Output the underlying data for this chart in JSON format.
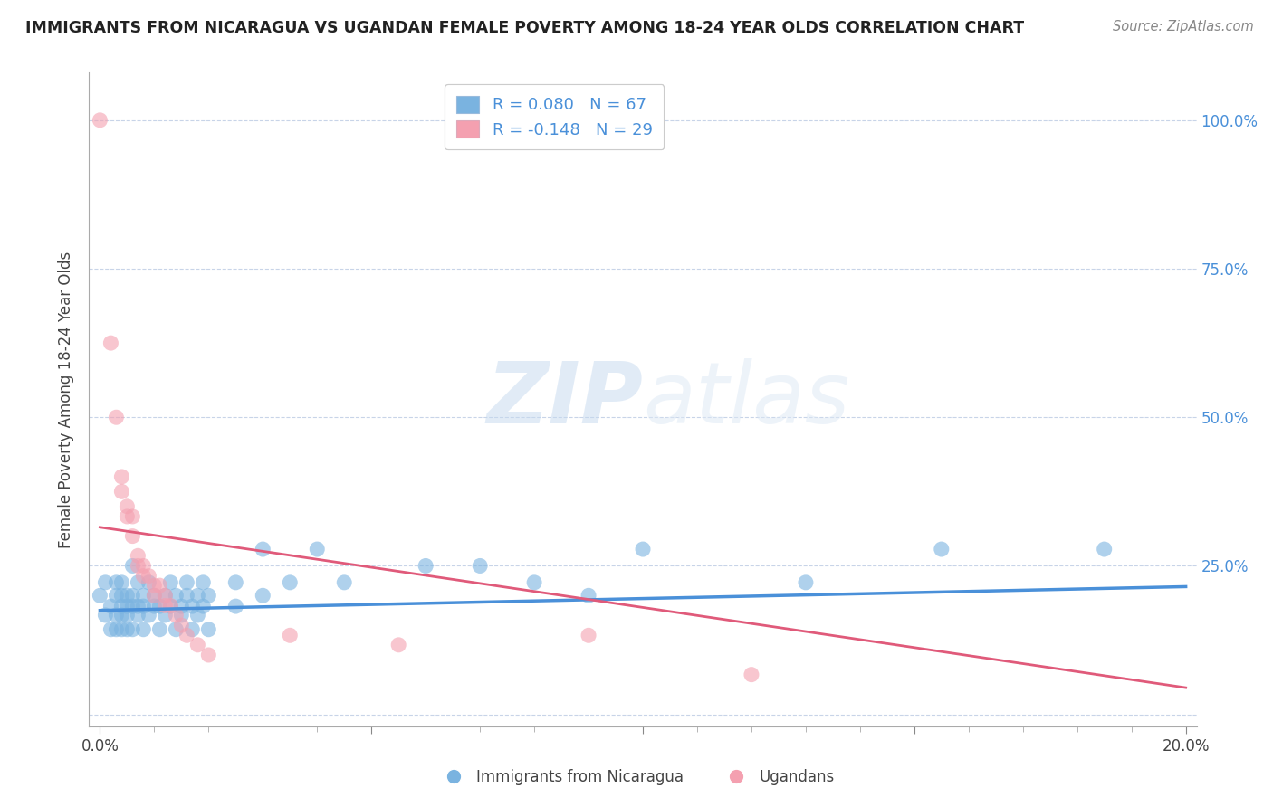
{
  "title": "IMMIGRANTS FROM NICARAGUA VS UGANDAN FEMALE POVERTY AMONG 18-24 YEAR OLDS CORRELATION CHART",
  "source": "Source: ZipAtlas.com",
  "ylabel": "Female Poverty Among 18-24 Year Olds",
  "right_yticks": [
    "100.0%",
    "75.0%",
    "50.0%",
    "25.0%"
  ],
  "right_ytick_vals": [
    1.0,
    0.75,
    0.5,
    0.25
  ],
  "r_blue": 0.08,
  "n_blue": 67,
  "r_pink": -0.148,
  "n_pink": 29,
  "legend_labels": [
    "Immigrants from Nicaragua",
    "Ugandans"
  ],
  "blue_color": "#7ab3e0",
  "pink_color": "#f4a0b0",
  "line_blue": "#4a90d9",
  "line_pink": "#e05a7a",
  "watermark_zip": "ZIP",
  "watermark_atlas": "atlas",
  "background_color": "#ffffff",
  "grid_color": "#c8d4e8",
  "title_color": "#222222",
  "text_color": "#444444",
  "blue_scatter": [
    [
      0.0,
      0.2
    ],
    [
      0.001,
      0.222
    ],
    [
      0.001,
      0.167
    ],
    [
      0.002,
      0.143
    ],
    [
      0.002,
      0.182
    ],
    [
      0.003,
      0.2
    ],
    [
      0.003,
      0.167
    ],
    [
      0.003,
      0.222
    ],
    [
      0.003,
      0.143
    ],
    [
      0.004,
      0.182
    ],
    [
      0.004,
      0.2
    ],
    [
      0.004,
      0.167
    ],
    [
      0.004,
      0.143
    ],
    [
      0.004,
      0.222
    ],
    [
      0.005,
      0.182
    ],
    [
      0.005,
      0.2
    ],
    [
      0.005,
      0.143
    ],
    [
      0.005,
      0.167
    ],
    [
      0.006,
      0.25
    ],
    [
      0.006,
      0.182
    ],
    [
      0.006,
      0.143
    ],
    [
      0.006,
      0.2
    ],
    [
      0.007,
      0.222
    ],
    [
      0.007,
      0.182
    ],
    [
      0.007,
      0.167
    ],
    [
      0.008,
      0.2
    ],
    [
      0.008,
      0.143
    ],
    [
      0.008,
      0.182
    ],
    [
      0.009,
      0.222
    ],
    [
      0.009,
      0.167
    ],
    [
      0.01,
      0.182
    ],
    [
      0.01,
      0.2
    ],
    [
      0.011,
      0.143
    ],
    [
      0.011,
      0.182
    ],
    [
      0.012,
      0.2
    ],
    [
      0.012,
      0.167
    ],
    [
      0.013,
      0.182
    ],
    [
      0.013,
      0.222
    ],
    [
      0.014,
      0.2
    ],
    [
      0.014,
      0.143
    ],
    [
      0.015,
      0.182
    ],
    [
      0.015,
      0.167
    ],
    [
      0.016,
      0.2
    ],
    [
      0.016,
      0.222
    ],
    [
      0.017,
      0.143
    ],
    [
      0.017,
      0.182
    ],
    [
      0.018,
      0.2
    ],
    [
      0.018,
      0.167
    ],
    [
      0.019,
      0.182
    ],
    [
      0.019,
      0.222
    ],
    [
      0.02,
      0.2
    ],
    [
      0.02,
      0.143
    ],
    [
      0.025,
      0.222
    ],
    [
      0.025,
      0.182
    ],
    [
      0.03,
      0.278
    ],
    [
      0.03,
      0.2
    ],
    [
      0.035,
      0.222
    ],
    [
      0.04,
      0.278
    ],
    [
      0.045,
      0.222
    ],
    [
      0.06,
      0.25
    ],
    [
      0.07,
      0.25
    ],
    [
      0.08,
      0.222
    ],
    [
      0.09,
      0.2
    ],
    [
      0.1,
      0.278
    ],
    [
      0.13,
      0.222
    ],
    [
      0.155,
      0.278
    ],
    [
      0.185,
      0.278
    ]
  ],
  "pink_scatter": [
    [
      0.0,
      1.0
    ],
    [
      0.002,
      0.625
    ],
    [
      0.003,
      0.5
    ],
    [
      0.004,
      0.4
    ],
    [
      0.004,
      0.375
    ],
    [
      0.005,
      0.333
    ],
    [
      0.005,
      0.35
    ],
    [
      0.006,
      0.3
    ],
    [
      0.006,
      0.333
    ],
    [
      0.007,
      0.267
    ],
    [
      0.007,
      0.25
    ],
    [
      0.008,
      0.25
    ],
    [
      0.008,
      0.233
    ],
    [
      0.009,
      0.233
    ],
    [
      0.01,
      0.217
    ],
    [
      0.01,
      0.2
    ],
    [
      0.011,
      0.217
    ],
    [
      0.012,
      0.183
    ],
    [
      0.012,
      0.2
    ],
    [
      0.013,
      0.183
    ],
    [
      0.014,
      0.167
    ],
    [
      0.015,
      0.15
    ],
    [
      0.016,
      0.133
    ],
    [
      0.018,
      0.117
    ],
    [
      0.02,
      0.1
    ],
    [
      0.035,
      0.133
    ],
    [
      0.055,
      0.117
    ],
    [
      0.09,
      0.133
    ],
    [
      0.12,
      0.067
    ]
  ],
  "blue_line_x": [
    0.0,
    0.2
  ],
  "blue_line_y": [
    0.175,
    0.215
  ],
  "pink_line_x": [
    0.0,
    0.2
  ],
  "pink_line_y": [
    0.315,
    0.045
  ],
  "xlim": [
    -0.002,
    0.202
  ],
  "ylim": [
    -0.02,
    1.08
  ],
  "xtick_vals": [
    0.0,
    0.05,
    0.1,
    0.15,
    0.2
  ],
  "xtick_labels": [
    "0.0%",
    "",
    "",
    "",
    "20.0%"
  ]
}
